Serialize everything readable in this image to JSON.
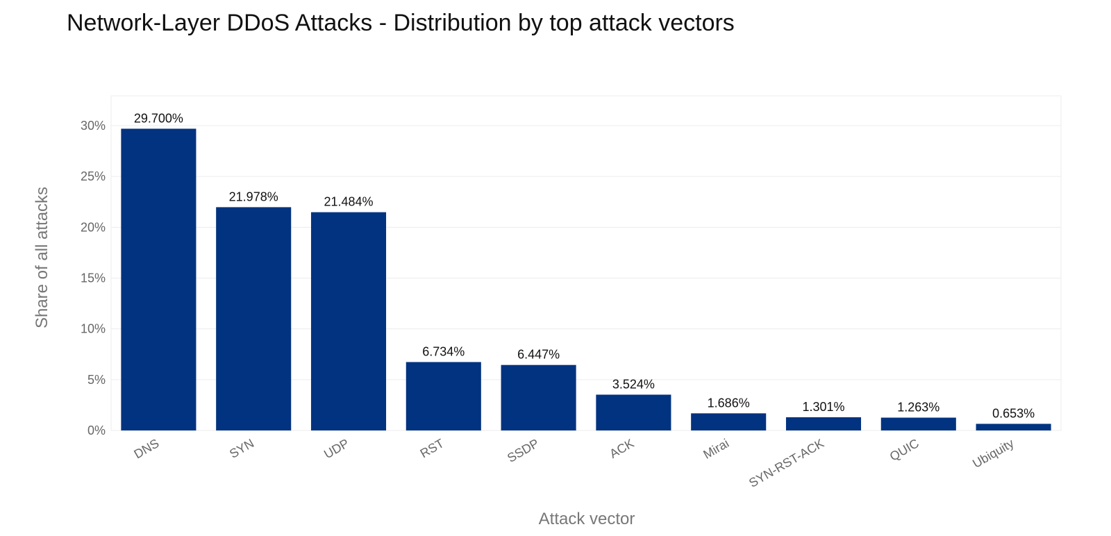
{
  "chart_data": {
    "type": "bar",
    "title": "Network-Layer DDoS Attacks - Distribution by top attack vectors",
    "xlabel": "Attack vector",
    "ylabel": "Share of all attacks",
    "categories": [
      "DNS",
      "SYN",
      "UDP",
      "RST",
      "SSDP",
      "ACK",
      "Mirai",
      "SYN-RST-ACK",
      "QUIC",
      "Ubiquity"
    ],
    "values": [
      29.7,
      21.978,
      21.484,
      6.734,
      6.447,
      3.524,
      1.686,
      1.301,
      1.263,
      0.653
    ],
    "data_labels": [
      "29.700%",
      "21.978%",
      "21.484%",
      "6.734%",
      "6.447%",
      "3.524%",
      "1.686%",
      "1.301%",
      "1.263%",
      "0.653%"
    ],
    "y_ticks": [
      0,
      5,
      10,
      15,
      20,
      25,
      30
    ],
    "y_tick_labels": [
      "0%",
      "5%",
      "10%",
      "15%",
      "20%",
      "25%",
      "30%"
    ],
    "ylim": [
      0,
      32.94
    ],
    "grid": true,
    "legend": false,
    "bar_color": "#023380",
    "grid_color": "#ececec",
    "panel_border_color": "#eeeeee"
  }
}
